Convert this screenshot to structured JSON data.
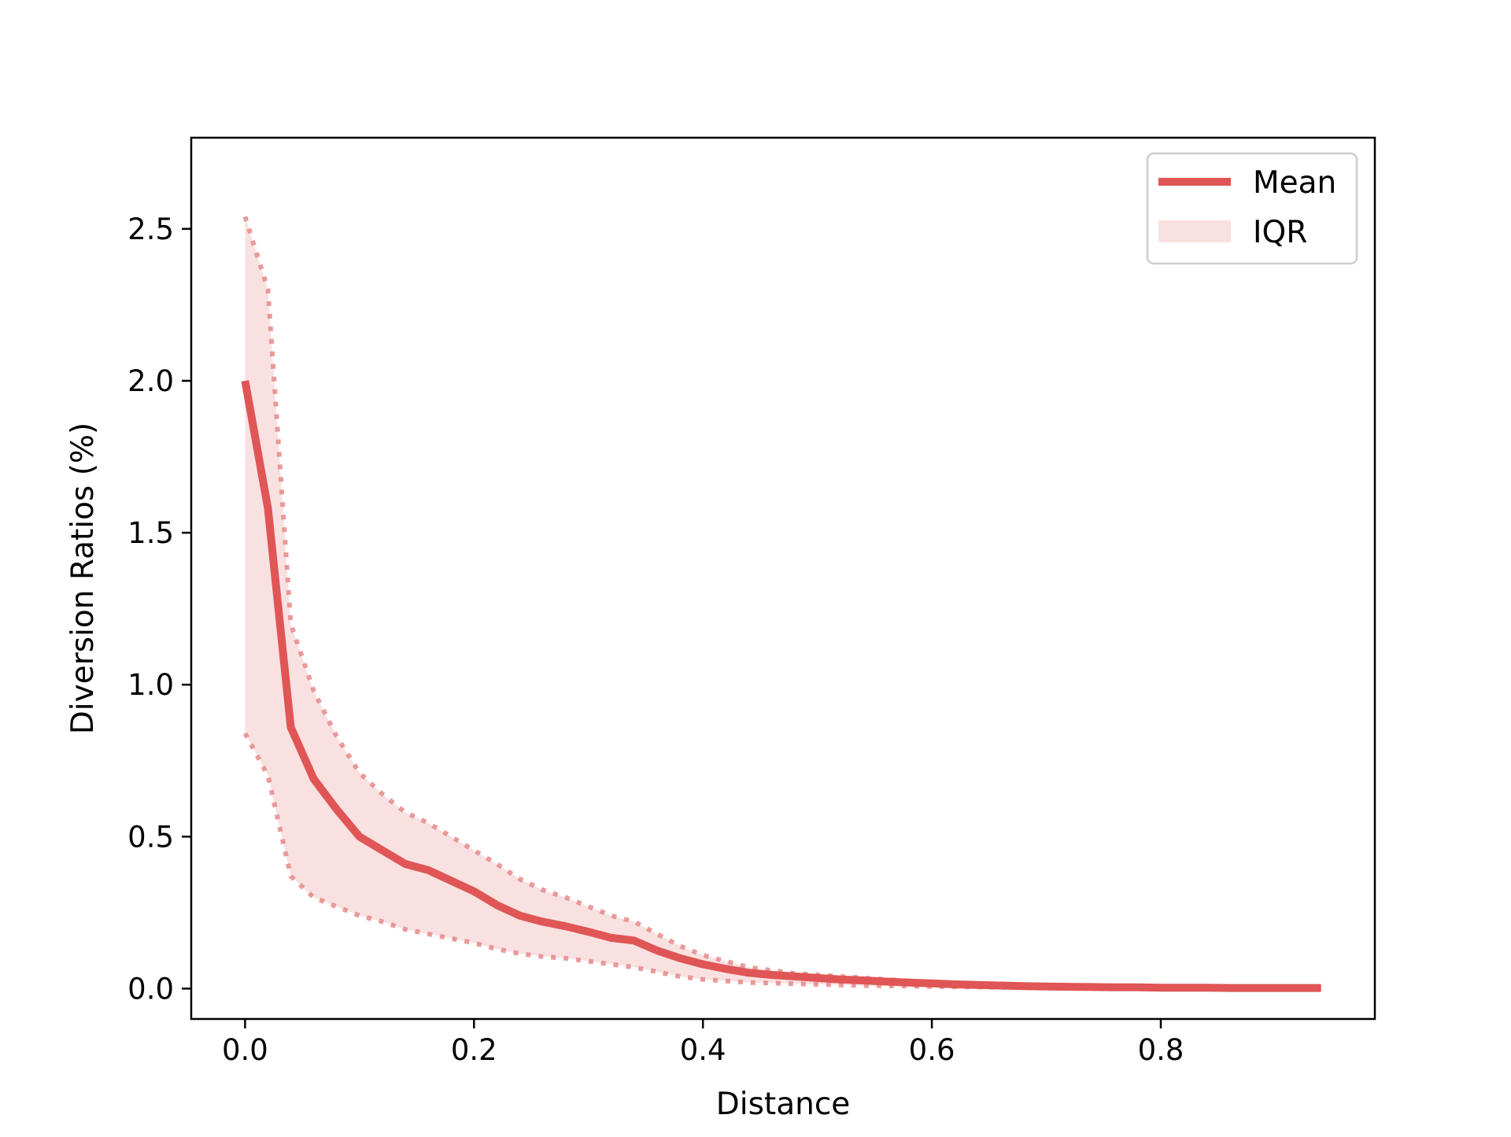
{
  "chart_data": {
    "type": "line",
    "title": "",
    "xlabel": "Distance",
    "ylabel": "Diversion Ratios (%)",
    "xlim": [
      -0.047,
      0.987
    ],
    "ylim": [
      -0.1,
      2.8
    ],
    "xticks": [
      0.0,
      0.2,
      0.4,
      0.6,
      0.8
    ],
    "xtick_labels": [
      "0.0",
      "0.2",
      "0.4",
      "0.6",
      "0.8"
    ],
    "yticks": [
      0.0,
      0.5,
      1.0,
      1.5,
      2.0,
      2.5
    ],
    "ytick_labels": [
      "0.0",
      "0.5",
      "1.0",
      "1.5",
      "2.0",
      "2.5"
    ],
    "grid": false,
    "legend_position": "top-right",
    "x": [
      0.0,
      0.02,
      0.04,
      0.06,
      0.08,
      0.1,
      0.12,
      0.14,
      0.16,
      0.18,
      0.2,
      0.22,
      0.24,
      0.26,
      0.28,
      0.3,
      0.32,
      0.34,
      0.36,
      0.38,
      0.4,
      0.42,
      0.44,
      0.46,
      0.48,
      0.5,
      0.52,
      0.54,
      0.56,
      0.58,
      0.6,
      0.62,
      0.64,
      0.66,
      0.68,
      0.7,
      0.72,
      0.74,
      0.76,
      0.78,
      0.8,
      0.82,
      0.84,
      0.86,
      0.88,
      0.9,
      0.92,
      0.94
    ],
    "series": [
      {
        "name": "Mean",
        "color": "#e05555",
        "values": [
          2.0,
          1.58,
          0.86,
          0.69,
          0.59,
          0.5,
          0.455,
          0.41,
          0.39,
          0.355,
          0.32,
          0.275,
          0.24,
          0.22,
          0.205,
          0.187,
          0.167,
          0.158,
          0.125,
          0.1,
          0.08,
          0.065,
          0.052,
          0.045,
          0.04,
          0.035,
          0.03,
          0.027,
          0.023,
          0.02,
          0.017,
          0.014,
          0.012,
          0.01,
          0.008,
          0.007,
          0.006,
          0.005,
          0.004,
          0.004,
          0.003,
          0.003,
          0.003,
          0.002,
          0.002,
          0.002,
          0.002,
          0.002
        ]
      }
    ],
    "iqr": {
      "name": "IQR",
      "color": "#f9e1e1",
      "upper": [
        2.54,
        2.3,
        1.2,
        0.98,
        0.83,
        0.71,
        0.64,
        0.58,
        0.545,
        0.5,
        0.455,
        0.41,
        0.36,
        0.325,
        0.3,
        0.27,
        0.24,
        0.22,
        0.18,
        0.14,
        0.11,
        0.09,
        0.07,
        0.06,
        0.05,
        0.045,
        0.04,
        0.035,
        0.03,
        0.025,
        0.02,
        0.017,
        0.015,
        0.013,
        0.011,
        0.01,
        0.009,
        0.008,
        0.007,
        0.006,
        0.005,
        0.005,
        0.004,
        0.004,
        0.003,
        0.003,
        0.003,
        0.003
      ],
      "lower": [
        0.84,
        0.7,
        0.37,
        0.3,
        0.27,
        0.24,
        0.22,
        0.195,
        0.18,
        0.165,
        0.15,
        0.13,
        0.115,
        0.105,
        0.1,
        0.09,
        0.08,
        0.07,
        0.055,
        0.04,
        0.03,
        0.025,
        0.02,
        0.018,
        0.016,
        0.014,
        0.012,
        0.01,
        0.009,
        0.008,
        0.007,
        0.006,
        0.005,
        0.004,
        0.004,
        0.003,
        0.003,
        0.002,
        0.002,
        0.002,
        0.002,
        0.001,
        0.001,
        0.001,
        0.001,
        0.001,
        0.001,
        0.001
      ]
    },
    "legend": [
      {
        "label": "Mean",
        "kind": "line",
        "color": "#e05555"
      },
      {
        "label": "IQR",
        "kind": "patch",
        "color": "#f9e1e1"
      }
    ]
  }
}
